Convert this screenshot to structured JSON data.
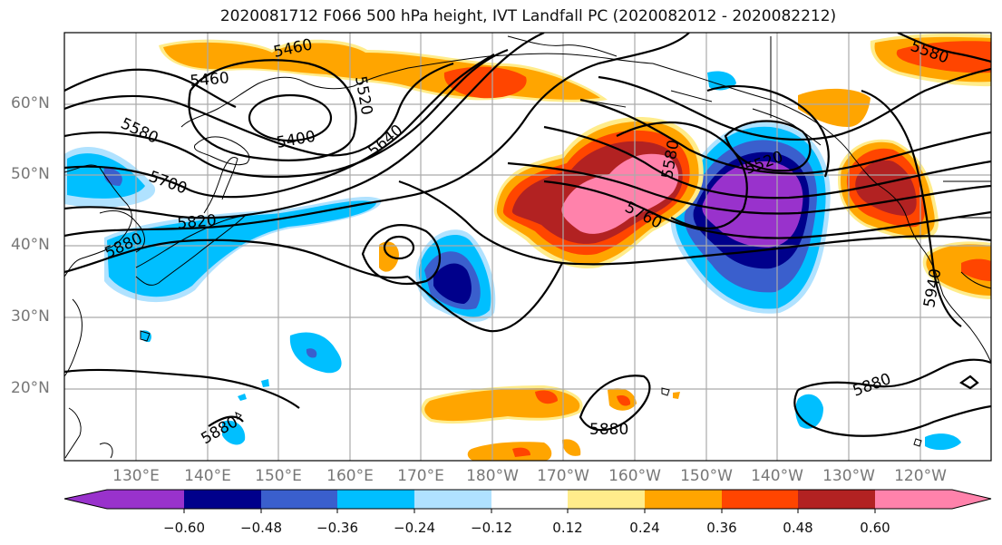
{
  "title": "2020081712 F066 500 hPa height, IVT Landfall PC (2020082012 - 2020082212)",
  "latitude_labels": [
    "60°N",
    "50°N",
    "40°N",
    "30°N",
    "20°N"
  ],
  "longitude_labels": [
    "130°E",
    "140°E",
    "150°E",
    "160°E",
    "170°E",
    "180°W",
    "170°W",
    "160°W",
    "150°W",
    "140°W",
    "130°W",
    "120°W"
  ],
  "contour_labels": [
    "5460",
    "5460",
    "5580",
    "5400",
    "5520",
    "5640",
    "5700",
    "5820",
    "5880",
    "5580",
    "5520",
    "5760",
    "5580",
    "5940",
    "5880",
    "5880",
    "5880"
  ],
  "colorbar": {
    "ticks": [
      "−0.60",
      "−0.48",
      "−0.36",
      "−0.24",
      "−0.12",
      "0.12",
      "0.24",
      "0.36",
      "0.48",
      "0.60"
    ],
    "colors": [
      "#9932cc",
      "#00008b",
      "#3a5fcd",
      "#00bfff",
      "#b0e2ff",
      "#ffffff",
      "#ffec8b",
      "#ffa500",
      "#ff4500",
      "#b22222",
      "#ff82ab"
    ]
  },
  "fill_colors": {
    "purple": "#9932cc",
    "navy": "#00008b",
    "blue": "#3a5fcd",
    "sky": "#00bfff",
    "light_sky": "#b0e2ff",
    "light_yellow": "#ffec8b",
    "orange": "#ffa500",
    "red_orange": "#ff4500",
    "dark_red": "#b22222",
    "pink": "#ff82ab"
  }
}
